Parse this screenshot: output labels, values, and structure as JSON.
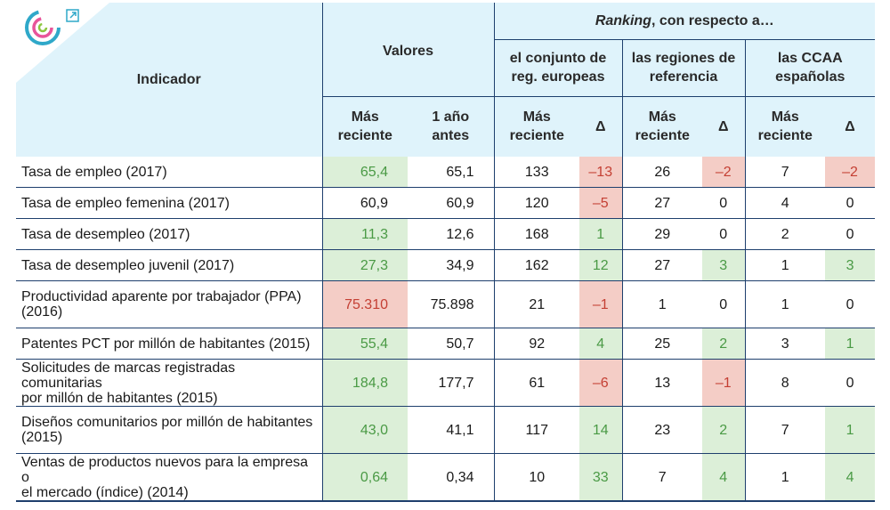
{
  "header": {
    "indicador": "Indicador",
    "valores": "Valores",
    "ranking_italic": "Ranking",
    "ranking_rest": ", con respecto a…",
    "group_europe": [
      "el conjunto de",
      "reg. europeas"
    ],
    "group_ref": [
      "las regiones de",
      "referencia"
    ],
    "group_ccaa": [
      "las CCAA",
      "españolas"
    ],
    "mas_reciente": [
      "Más",
      "reciente"
    ],
    "un_ano_antes": [
      "1 año",
      "antes"
    ],
    "delta": "Δ"
  },
  "rows": [
    {
      "indicador": [
        "Tasa de empleo (2017)"
      ],
      "reciente": "65,4",
      "antes": "65,1",
      "eu": "133",
      "eu_d": "–13",
      "ref": "26",
      "ref_d": "–2",
      "ccaa": "7",
      "ccaa_d": "–2"
    },
    {
      "indicador": [
        "Tasa de empleo femenina (2017)"
      ],
      "reciente": "60,9",
      "antes": "60,9",
      "eu": "120",
      "eu_d": "–5",
      "ref": "27",
      "ref_d": "0",
      "ccaa": "4",
      "ccaa_d": "0"
    },
    {
      "indicador": [
        "Tasa de desempleo (2017)"
      ],
      "reciente": "11,3",
      "antes": "12,6",
      "eu": "168",
      "eu_d": "1",
      "ref": "29",
      "ref_d": "0",
      "ccaa": "2",
      "ccaa_d": "0"
    },
    {
      "indicador": [
        "Tasa de desempleo juvenil (2017)"
      ],
      "reciente": "27,3",
      "antes": "34,9",
      "eu": "162",
      "eu_d": "12",
      "ref": "27",
      "ref_d": "3",
      "ccaa": "1",
      "ccaa_d": "3"
    },
    {
      "indicador": [
        "Productividad aparente por trabajador (PPA)",
        "(2016)"
      ],
      "reciente": "75.310",
      "antes": "75.898",
      "eu": "21",
      "eu_d": "–1",
      "ref": "1",
      "ref_d": "0",
      "ccaa": "1",
      "ccaa_d": "0"
    },
    {
      "indicador": [
        "Patentes PCT por millón de habitantes (2015)"
      ],
      "reciente": "55,4",
      "antes": "50,7",
      "eu": "92",
      "eu_d": "4",
      "ref": "25",
      "ref_d": "2",
      "ccaa": "3",
      "ccaa_d": "1"
    },
    {
      "indicador": [
        "Solicitudes de marcas registradas comunitarias",
        "por millón de habitantes (2015)"
      ],
      "reciente": "184,8",
      "antes": "177,7",
      "eu": "61",
      "eu_d": "–6",
      "ref": "13",
      "ref_d": "–1",
      "ccaa": "8",
      "ccaa_d": "0"
    },
    {
      "indicador": [
        "Diseños comunitarios por millón de habitantes",
        "(2015)"
      ],
      "reciente": "43,0",
      "antes": "41,1",
      "eu": "117",
      "eu_d": "14",
      "ref": "23",
      "ref_d": "2",
      "ccaa": "7",
      "ccaa_d": "1"
    },
    {
      "indicador": [
        "Ventas de productos nuevos para la empresa o",
        "el mercado (índice) (2014)"
      ],
      "reciente": "0,64",
      "antes": "0,34",
      "eu": "10",
      "eu_d": "33",
      "ref": "7",
      "ref_d": "4",
      "ccaa": "1",
      "ccaa_d": "4"
    }
  ],
  "highlights": {
    "0": {
      "reciente": "green",
      "eu_d": "red",
      "ref_d": "red",
      "ccaa_d": "red"
    },
    "1": {
      "eu_d": "red"
    },
    "2": {
      "reciente": "green",
      "eu_d": "green"
    },
    "3": {
      "reciente": "green",
      "eu_d": "green",
      "ref_d": "green",
      "ccaa_d": "green"
    },
    "4": {
      "reciente": "red",
      "eu_d": "red"
    },
    "5": {
      "reciente": "green",
      "eu_d": "green",
      "ref_d": "green",
      "ccaa_d": "green"
    },
    "6": {
      "reciente": "green",
      "eu_d": "red",
      "ref_d": "red"
    },
    "7": {
      "reciente": "green",
      "eu_d": "green",
      "ref_d": "green",
      "ccaa_d": "green"
    },
    "8": {
      "reciente": "green",
      "eu_d": "green",
      "ref_d": "green",
      "ccaa_d": "green"
    }
  },
  "colors": {
    "header_bg": "#dff3fb",
    "green_bg": "#dcefd8",
    "red_bg": "#f4cdc6",
    "rule": "#1e3f6d"
  },
  "icons": {
    "logo": "circular-arrows-logo-icon",
    "expand": "external-link-icon"
  }
}
